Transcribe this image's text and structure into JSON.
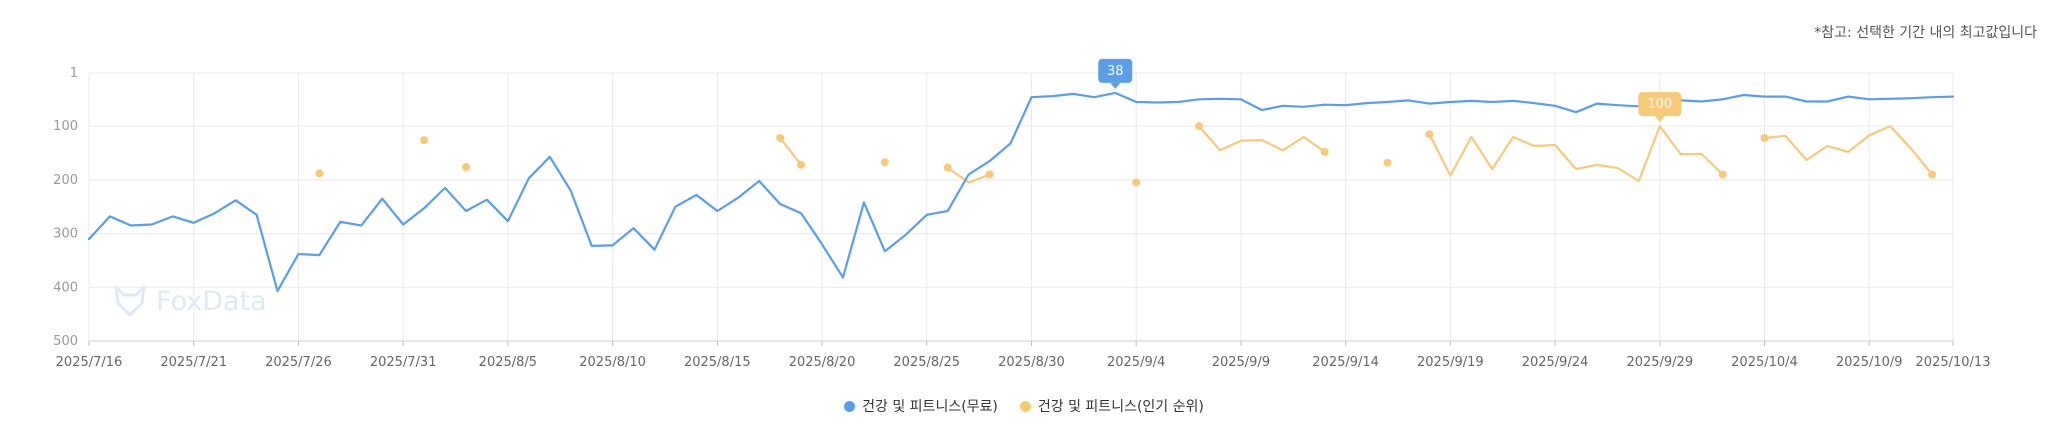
{
  "note": "*참고: 선택한 기간 내의 최고값입니다",
  "watermark": "FoxData",
  "colors": {
    "free": "#5b9ee6",
    "popular": "#f7c97a",
    "grid": "#e9e9e9"
  },
  "legend": {
    "free": "건강 및 피트니스(무료)",
    "popular": "건강 및 피트니스(인기 순위)"
  },
  "chart_data": {
    "type": "line",
    "x_start": "2025/7/16",
    "x_end": "2025/10/13",
    "x_ticks": [
      "2025/7/16",
      "2025/7/21",
      "2025/7/26",
      "2025/7/31",
      "2025/8/5",
      "2025/8/10",
      "2025/8/15",
      "2025/8/20",
      "2025/8/25",
      "2025/8/30",
      "2025/9/4",
      "2025/9/9",
      "2025/9/14",
      "2025/9/19",
      "2025/9/24",
      "2025/9/29",
      "2025/10/4",
      "2025/10/9",
      "2025/10/13"
    ],
    "y_ticks": [
      "1",
      "100",
      "200",
      "300",
      "400",
      "500"
    ],
    "y_reversed": true,
    "ylim": [
      1,
      500
    ],
    "series": [
      {
        "name": "건강 및 피트니스(무료)",
        "color": "#5b9ee6",
        "values": [
          310,
          268,
          285,
          283,
          268,
          280,
          262,
          238,
          265,
          407,
          338,
          340,
          278,
          285,
          235,
          283,
          253,
          215,
          258,
          237,
          277,
          197,
          157,
          220,
          323,
          322,
          290,
          330,
          250,
          228,
          258,
          233,
          202,
          245,
          262,
          320,
          382,
          242,
          333,
          302,
          265,
          258,
          190,
          165,
          132,
          46,
          44,
          40,
          46,
          38,
          55,
          56,
          55,
          50,
          49,
          50,
          70,
          62,
          64,
          60,
          61,
          57,
          55,
          52,
          58,
          55,
          53,
          55,
          53,
          57,
          62,
          74,
          58,
          61,
          63,
          64,
          52,
          54,
          50,
          42,
          45,
          45,
          54,
          54,
          45,
          50,
          49,
          48,
          46,
          45
        ],
        "max_label": "38"
      },
      {
        "name": "건강 및 피트니스(인기 순위)",
        "color": "#f7c97a",
        "segments": [
          {
            "start": 11,
            "values": [
              188
            ]
          },
          {
            "start": 16,
            "values": [
              126
            ]
          },
          {
            "start": 18,
            "values": [
              176
            ]
          },
          {
            "start": 33,
            "values": [
              122,
              172
            ]
          },
          {
            "start": 38,
            "values": [
              167
            ]
          },
          {
            "start": 41,
            "values": [
              177,
              205,
              190
            ]
          },
          {
            "start": 50,
            "values": [
              205
            ]
          },
          {
            "start": 53,
            "values": [
              100,
              145,
              127,
              126,
              145,
              120,
              148
            ]
          },
          {
            "start": 62,
            "values": [
              168
            ]
          },
          {
            "start": 64,
            "values": [
              115,
              192,
              120,
              180,
              120,
              137,
              135,
              180,
              172,
              178,
              202,
              100,
              152,
              152,
              190
            ]
          },
          {
            "start": 80,
            "values": [
              122,
              118,
              163,
              137,
              148,
              117,
              100,
              142,
              190
            ]
          }
        ],
        "max_label": "100"
      }
    ]
  }
}
